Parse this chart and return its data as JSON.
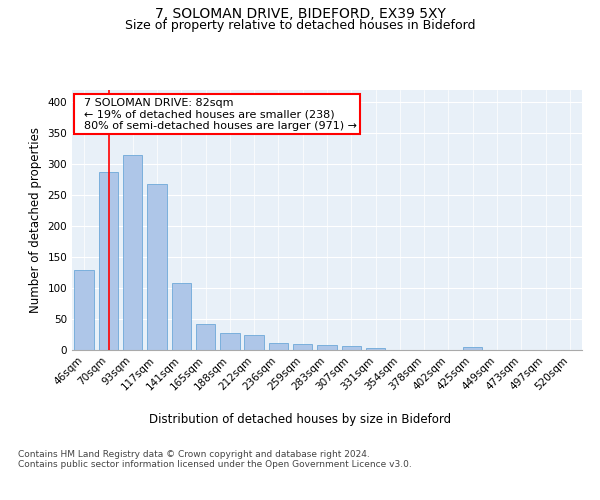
{
  "title_line1": "7, SOLOMAN DRIVE, BIDEFORD, EX39 5XY",
  "title_line2": "Size of property relative to detached houses in Bideford",
  "xlabel": "Distribution of detached houses by size in Bideford",
  "ylabel": "Number of detached properties",
  "footnote": "Contains HM Land Registry data © Crown copyright and database right 2024.\nContains public sector information licensed under the Open Government Licence v3.0.",
  "categories": [
    "46sqm",
    "70sqm",
    "93sqm",
    "117sqm",
    "141sqm",
    "165sqm",
    "188sqm",
    "212sqm",
    "236sqm",
    "259sqm",
    "283sqm",
    "307sqm",
    "331sqm",
    "354sqm",
    "378sqm",
    "402sqm",
    "425sqm",
    "449sqm",
    "473sqm",
    "497sqm",
    "520sqm"
  ],
  "values": [
    130,
    288,
    315,
    268,
    108,
    42,
    27,
    25,
    12,
    9,
    8,
    7,
    3,
    0,
    0,
    0,
    5,
    0,
    0,
    0,
    0
  ],
  "bar_color": "#aec6e8",
  "bar_edge_color": "#5a9fd4",
  "background_color": "#e8f0f8",
  "annotation_box_text": "  7 SOLOMAN DRIVE: 82sqm\n  ← 19% of detached houses are smaller (238)\n  80% of semi-detached houses are larger (971) →",
  "annotation_box_color": "white",
  "annotation_box_edge_color": "red",
  "vline_color": "red",
  "ylim": [
    0,
    420
  ],
  "yticks": [
    0,
    50,
    100,
    150,
    200,
    250,
    300,
    350,
    400
  ],
  "title_fontsize": 10,
  "subtitle_fontsize": 9,
  "axis_label_fontsize": 8.5,
  "tick_fontsize": 7.5,
  "annotation_fontsize": 8,
  "footnote_fontsize": 6.5
}
